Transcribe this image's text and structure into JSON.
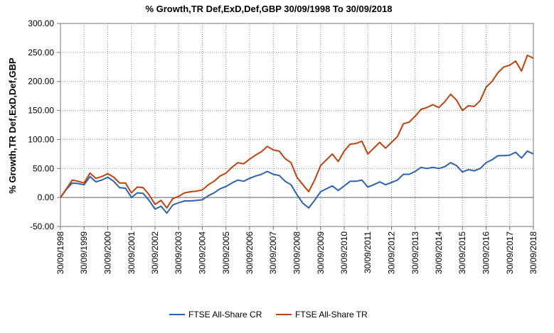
{
  "chart_data": {
    "type": "line",
    "title": "% Growth,TR Def,ExD,Def,GBP 30/09/1998 To 30/09/2018",
    "xlabel": "",
    "ylabel": "% Growth,TR Def,ExD,Def,GBP",
    "ylim": [
      -50,
      300
    ],
    "xlim": [
      "30/09/1998",
      "30/09/2018"
    ],
    "y_ticks": [
      "300.00",
      "250.00",
      "200.00",
      "150.00",
      "100.00",
      "50.00",
      "0.00",
      "-50.00"
    ],
    "x_ticks": [
      "30/09/1998",
      "30/09/1999",
      "30/09/2000",
      "30/09/2001",
      "30/09/2002",
      "30/09/2003",
      "30/09/2004",
      "30/09/2005",
      "30/09/2006",
      "30/09/2007",
      "30/09/2008",
      "30/09/2009",
      "30/09/2010",
      "30/09/2011",
      "30/09/2012",
      "30/09/2013",
      "30/09/2014",
      "30/09/2015",
      "30/09/2016",
      "30/09/2017",
      "30/09/2018"
    ],
    "grid": true,
    "legend_position": "bottom",
    "series": [
      {
        "name": "FTSE All-Share CR",
        "color": "#2b62b8",
        "points": [
          [
            "1998-09-30",
            0
          ],
          [
            "1998-12-31",
            14
          ],
          [
            "1999-03-31",
            25
          ],
          [
            "1999-06-30",
            24
          ],
          [
            "1999-09-30",
            22
          ],
          [
            "1999-12-31",
            36
          ],
          [
            "2000-03-31",
            27
          ],
          [
            "2000-06-30",
            30
          ],
          [
            "2000-09-30",
            35
          ],
          [
            "2000-12-31",
            28
          ],
          [
            "2001-03-31",
            17
          ],
          [
            "2001-06-30",
            16
          ],
          [
            "2001-09-30",
            0
          ],
          [
            "2001-12-31",
            8
          ],
          [
            "2002-03-31",
            7
          ],
          [
            "2002-06-30",
            -5
          ],
          [
            "2002-09-30",
            -20
          ],
          [
            "2002-12-31",
            -15
          ],
          [
            "2003-03-31",
            -27
          ],
          [
            "2003-06-30",
            -13
          ],
          [
            "2003-09-30",
            -9
          ],
          [
            "2003-12-31",
            -6
          ],
          [
            "2004-03-31",
            -6
          ],
          [
            "2004-06-30",
            -5
          ],
          [
            "2004-09-30",
            -4
          ],
          [
            "2004-12-31",
            3
          ],
          [
            "2005-03-31",
            8
          ],
          [
            "2005-06-30",
            15
          ],
          [
            "2005-09-30",
            19
          ],
          [
            "2005-12-31",
            25
          ],
          [
            "2006-03-31",
            30
          ],
          [
            "2006-06-30",
            28
          ],
          [
            "2006-09-30",
            33
          ],
          [
            "2006-12-31",
            37
          ],
          [
            "2007-03-31",
            40
          ],
          [
            "2007-06-30",
            45
          ],
          [
            "2007-09-30",
            40
          ],
          [
            "2007-12-31",
            38
          ],
          [
            "2008-03-31",
            28
          ],
          [
            "2008-06-30",
            22
          ],
          [
            "2008-09-30",
            5
          ],
          [
            "2008-12-31",
            -10
          ],
          [
            "2009-03-31",
            -18
          ],
          [
            "2009-06-30",
            -5
          ],
          [
            "2009-09-30",
            10
          ],
          [
            "2009-12-31",
            15
          ],
          [
            "2010-03-31",
            20
          ],
          [
            "2010-06-30",
            12
          ],
          [
            "2010-09-30",
            20
          ],
          [
            "2010-12-31",
            28
          ],
          [
            "2011-03-31",
            28
          ],
          [
            "2011-06-30",
            30
          ],
          [
            "2011-09-30",
            18
          ],
          [
            "2011-12-31",
            22
          ],
          [
            "2012-03-31",
            27
          ],
          [
            "2012-06-30",
            22
          ],
          [
            "2012-09-30",
            26
          ],
          [
            "2012-12-31",
            30
          ],
          [
            "2013-03-31",
            40
          ],
          [
            "2013-06-30",
            40
          ],
          [
            "2013-09-30",
            45
          ],
          [
            "2013-12-31",
            52
          ],
          [
            "2014-03-31",
            50
          ],
          [
            "2014-06-30",
            52
          ],
          [
            "2014-09-30",
            50
          ],
          [
            "2014-12-31",
            53
          ],
          [
            "2015-03-31",
            60
          ],
          [
            "2015-06-30",
            55
          ],
          [
            "2015-09-30",
            44
          ],
          [
            "2015-12-31",
            48
          ],
          [
            "2016-03-31",
            46
          ],
          [
            "2016-06-30",
            50
          ],
          [
            "2016-09-30",
            60
          ],
          [
            "2016-12-31",
            65
          ],
          [
            "2017-03-31",
            72
          ],
          [
            "2017-06-30",
            72
          ],
          [
            "2017-09-30",
            73
          ],
          [
            "2017-12-31",
            78
          ],
          [
            "2018-03-31",
            68
          ],
          [
            "2018-06-30",
            80
          ],
          [
            "2018-09-30",
            75
          ]
        ]
      },
      {
        "name": "FTSE All-Share TR",
        "color": "#c0410c",
        "points": [
          [
            "1998-09-30",
            0
          ],
          [
            "1998-12-31",
            15
          ],
          [
            "1999-03-31",
            30
          ],
          [
            "1999-06-30",
            28
          ],
          [
            "1999-09-30",
            25
          ],
          [
            "1999-12-31",
            42
          ],
          [
            "2000-03-31",
            33
          ],
          [
            "2000-06-30",
            36
          ],
          [
            "2000-09-30",
            41
          ],
          [
            "2000-12-31",
            35
          ],
          [
            "2001-03-31",
            25
          ],
          [
            "2001-06-30",
            25
          ],
          [
            "2001-09-30",
            8
          ],
          [
            "2001-12-31",
            18
          ],
          [
            "2002-03-31",
            17
          ],
          [
            "2002-06-30",
            5
          ],
          [
            "2002-09-30",
            -12
          ],
          [
            "2002-12-31",
            -5
          ],
          [
            "2003-03-31",
            -18
          ],
          [
            "2003-06-30",
            -2
          ],
          [
            "2003-09-30",
            2
          ],
          [
            "2003-12-31",
            8
          ],
          [
            "2004-03-31",
            10
          ],
          [
            "2004-06-30",
            11
          ],
          [
            "2004-09-30",
            13
          ],
          [
            "2004-12-31",
            22
          ],
          [
            "2005-03-31",
            28
          ],
          [
            "2005-06-30",
            37
          ],
          [
            "2005-09-30",
            42
          ],
          [
            "2005-12-31",
            52
          ],
          [
            "2006-03-31",
            60
          ],
          [
            "2006-06-30",
            58
          ],
          [
            "2006-09-30",
            66
          ],
          [
            "2006-12-31",
            73
          ],
          [
            "2007-03-31",
            79
          ],
          [
            "2007-06-30",
            88
          ],
          [
            "2007-09-30",
            82
          ],
          [
            "2007-12-31",
            80
          ],
          [
            "2008-03-31",
            67
          ],
          [
            "2008-06-30",
            60
          ],
          [
            "2008-09-30",
            35
          ],
          [
            "2008-12-31",
            22
          ],
          [
            "2009-03-31",
            10
          ],
          [
            "2009-06-30",
            30
          ],
          [
            "2009-09-30",
            55
          ],
          [
            "2009-12-31",
            65
          ],
          [
            "2010-03-31",
            75
          ],
          [
            "2010-06-30",
            62
          ],
          [
            "2010-09-30",
            80
          ],
          [
            "2010-12-31",
            92
          ],
          [
            "2011-03-31",
            93
          ],
          [
            "2011-06-30",
            97
          ],
          [
            "2011-09-30",
            75
          ],
          [
            "2011-12-31",
            85
          ],
          [
            "2012-03-31",
            95
          ],
          [
            "2012-06-30",
            85
          ],
          [
            "2012-09-30",
            95
          ],
          [
            "2012-12-31",
            105
          ],
          [
            "2013-03-31",
            127
          ],
          [
            "2013-06-30",
            130
          ],
          [
            "2013-09-30",
            140
          ],
          [
            "2013-12-31",
            152
          ],
          [
            "2014-03-31",
            155
          ],
          [
            "2014-06-30",
            160
          ],
          [
            "2014-09-30",
            155
          ],
          [
            "2014-12-31",
            165
          ],
          [
            "2015-03-31",
            178
          ],
          [
            "2015-06-30",
            168
          ],
          [
            "2015-09-30",
            150
          ],
          [
            "2015-12-31",
            158
          ],
          [
            "2016-03-31",
            157
          ],
          [
            "2016-06-30",
            167
          ],
          [
            "2016-09-30",
            190
          ],
          [
            "2016-12-31",
            200
          ],
          [
            "2017-03-31",
            215
          ],
          [
            "2017-06-30",
            225
          ],
          [
            "2017-09-30",
            228
          ],
          [
            "2017-12-31",
            235
          ],
          [
            "2018-03-31",
            218
          ],
          [
            "2018-06-30",
            245
          ],
          [
            "2018-09-30",
            240
          ]
        ]
      }
    ]
  }
}
